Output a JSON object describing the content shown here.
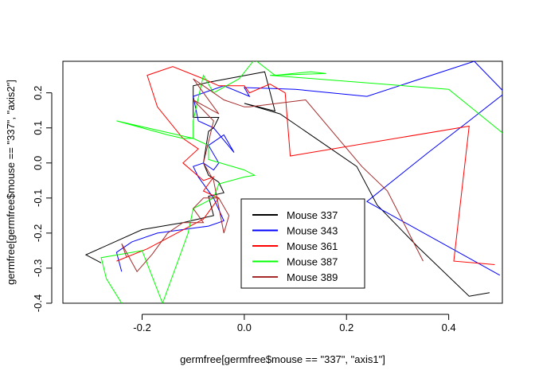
{
  "chart_data": {
    "type": "line",
    "xlabel": "germfree[germfree$mouse == \"337\", \"axis1\"]",
    "ylabel": "germfree[germfree$mouse == \"337\", \"axis2\"]",
    "xlim": [
      -0.355,
      0.505
    ],
    "ylim": [
      -0.4,
      0.29
    ],
    "x_ticks": [
      -0.2,
      0.0,
      0.2,
      0.4
    ],
    "x_tick_labels": [
      "-0.2",
      "0.0",
      "0.2",
      "0.4"
    ],
    "y_ticks": [
      -0.4,
      -0.3,
      -0.2,
      -0.1,
      0.0,
      0.1,
      0.2
    ],
    "y_tick_labels": [
      "-0.4",
      "-0.3",
      "-0.2",
      "-0.1",
      "0.0",
      "0.1",
      "0.2"
    ],
    "grid": false,
    "legend_position": "bottom-center",
    "series": [
      {
        "name": "Mouse 337",
        "color": "#000000",
        "points": [
          [
            -0.28,
            -0.285
          ],
          [
            -0.31,
            -0.262
          ],
          [
            -0.2,
            -0.19
          ],
          [
            -0.12,
            -0.17
          ],
          [
            -0.06,
            -0.15
          ],
          [
            -0.07,
            -0.095
          ],
          [
            -0.04,
            -0.085
          ],
          [
            -0.05,
            -0.055
          ],
          [
            -0.07,
            -0.035
          ],
          [
            -0.08,
            0.0
          ],
          [
            -0.07,
            0.09
          ],
          [
            -0.06,
            0.1
          ],
          [
            -0.05,
            0.13
          ],
          [
            -0.1,
            0.13
          ],
          [
            -0.1,
            0.18
          ],
          [
            -0.1,
            0.22
          ],
          [
            -0.07,
            0.23
          ],
          [
            0.04,
            0.26
          ],
          [
            0.06,
            0.148
          ],
          [
            0.0,
            0.17
          ],
          [
            0.07,
            0.14
          ],
          [
            0.15,
            0.06
          ],
          [
            0.22,
            -0.01
          ],
          [
            0.26,
            -0.12
          ],
          [
            0.34,
            -0.24
          ],
          [
            0.44,
            -0.38
          ],
          [
            0.48,
            -0.37
          ]
        ]
      },
      {
        "name": "Mouse 343",
        "color": "#0000FF",
        "points": [
          [
            -0.24,
            -0.31
          ],
          [
            -0.25,
            -0.255
          ],
          [
            -0.24,
            -0.245
          ],
          [
            -0.22,
            -0.225
          ],
          [
            -0.17,
            -0.2
          ],
          [
            -0.07,
            -0.18
          ],
          [
            -0.04,
            -0.165
          ],
          [
            -0.06,
            -0.1
          ],
          [
            -0.09,
            -0.04
          ],
          [
            -0.1,
            -0.01
          ],
          [
            -0.08,
            0.0
          ],
          [
            -0.06,
            -0.02
          ],
          [
            -0.05,
            0.0
          ],
          [
            -0.07,
            0.05
          ],
          [
            -0.04,
            0.08
          ],
          [
            -0.02,
            0.03
          ],
          [
            -0.06,
            0.1
          ],
          [
            -0.09,
            0.12
          ],
          [
            -0.1,
            0.19
          ],
          [
            -0.04,
            0.22
          ],
          [
            0.01,
            0.19
          ],
          [
            0.0,
            0.215
          ],
          [
            0.1,
            0.21
          ],
          [
            0.24,
            0.19
          ],
          [
            0.45,
            0.29
          ],
          [
            0.51,
            0.2
          ],
          [
            0.44,
            0.12
          ],
          [
            0.36,
            0.03
          ],
          [
            0.24,
            -0.11
          ],
          [
            0.5,
            -0.32
          ]
        ]
      },
      {
        "name": "Mouse 361",
        "color": "#FF0000",
        "points": [
          [
            -0.25,
            -0.28
          ],
          [
            -0.19,
            -0.245
          ],
          [
            -0.08,
            -0.16
          ],
          [
            -0.05,
            -0.1
          ],
          [
            -0.08,
            -0.08
          ],
          [
            -0.06,
            -0.04
          ],
          [
            -0.08,
            -0.05
          ],
          [
            -0.12,
            0.0
          ],
          [
            -0.09,
            0.04
          ],
          [
            -0.12,
            0.07
          ],
          [
            -0.17,
            0.16
          ],
          [
            -0.19,
            0.25
          ],
          [
            -0.14,
            0.275
          ],
          [
            -0.08,
            0.24
          ],
          [
            -0.05,
            0.22
          ],
          [
            0.0,
            0.22
          ],
          [
            0.01,
            0.2
          ],
          [
            0.05,
            0.225
          ],
          [
            0.08,
            0.2
          ],
          [
            0.09,
            0.02
          ],
          [
            0.44,
            0.105
          ],
          [
            0.41,
            -0.28
          ],
          [
            0.49,
            -0.29
          ]
        ]
      },
      {
        "name": "Mouse 387",
        "color": "#00FF00",
        "points": [
          [
            -0.24,
            -0.4
          ],
          [
            -0.27,
            -0.33
          ],
          [
            -0.28,
            -0.27
          ],
          [
            -0.2,
            -0.25
          ],
          [
            -0.16,
            -0.4
          ],
          [
            -0.11,
            -0.2
          ],
          [
            -0.1,
            -0.13
          ],
          [
            -0.06,
            -0.1
          ],
          [
            -0.05,
            -0.06
          ],
          [
            0.0,
            -0.04
          ],
          [
            0.02,
            -0.035
          ],
          [
            0.0,
            -0.02
          ],
          [
            -0.07,
            0.01
          ],
          [
            -0.07,
            0.05
          ],
          [
            -0.1,
            0.07
          ],
          [
            -0.12,
            0.07
          ],
          [
            -0.15,
            0.08
          ],
          [
            -0.25,
            0.12
          ],
          [
            -0.1,
            0.07
          ],
          [
            -0.1,
            0.12
          ],
          [
            -0.08,
            0.25
          ],
          [
            -0.06,
            0.2
          ],
          [
            -0.01,
            0.24
          ],
          [
            0.02,
            0.295
          ],
          [
            0.06,
            0.25
          ],
          [
            0.13,
            0.26
          ],
          [
            0.16,
            0.255
          ],
          [
            0.05,
            0.25
          ],
          [
            0.4,
            0.21
          ],
          [
            0.51,
            0.08
          ]
        ]
      },
      {
        "name": "Mouse 389",
        "color": "#A52A2A",
        "points": [
          [
            -0.23,
            -0.27
          ],
          [
            -0.24,
            -0.23
          ],
          [
            -0.21,
            -0.31
          ],
          [
            -0.18,
            -0.26
          ],
          [
            -0.15,
            -0.2
          ],
          [
            -0.12,
            -0.17
          ],
          [
            -0.08,
            -0.17
          ],
          [
            -0.1,
            -0.13
          ],
          [
            -0.08,
            -0.1
          ],
          [
            -0.05,
            -0.1
          ],
          [
            -0.03,
            -0.15
          ],
          [
            -0.04,
            -0.2
          ],
          [
            -0.06,
            -0.05
          ],
          [
            -0.08,
            0.0
          ],
          [
            -0.06,
            0.12
          ],
          [
            -0.1,
            0.18
          ],
          [
            -0.05,
            0.14
          ],
          [
            -0.1,
            0.24
          ],
          [
            -0.04,
            0.18
          ],
          [
            0.0,
            0.16
          ],
          [
            0.01,
            0.16
          ],
          [
            0.12,
            0.18
          ],
          [
            0.23,
            -0.01
          ],
          [
            0.28,
            -0.08
          ],
          [
            0.35,
            -0.28
          ]
        ]
      }
    ]
  }
}
